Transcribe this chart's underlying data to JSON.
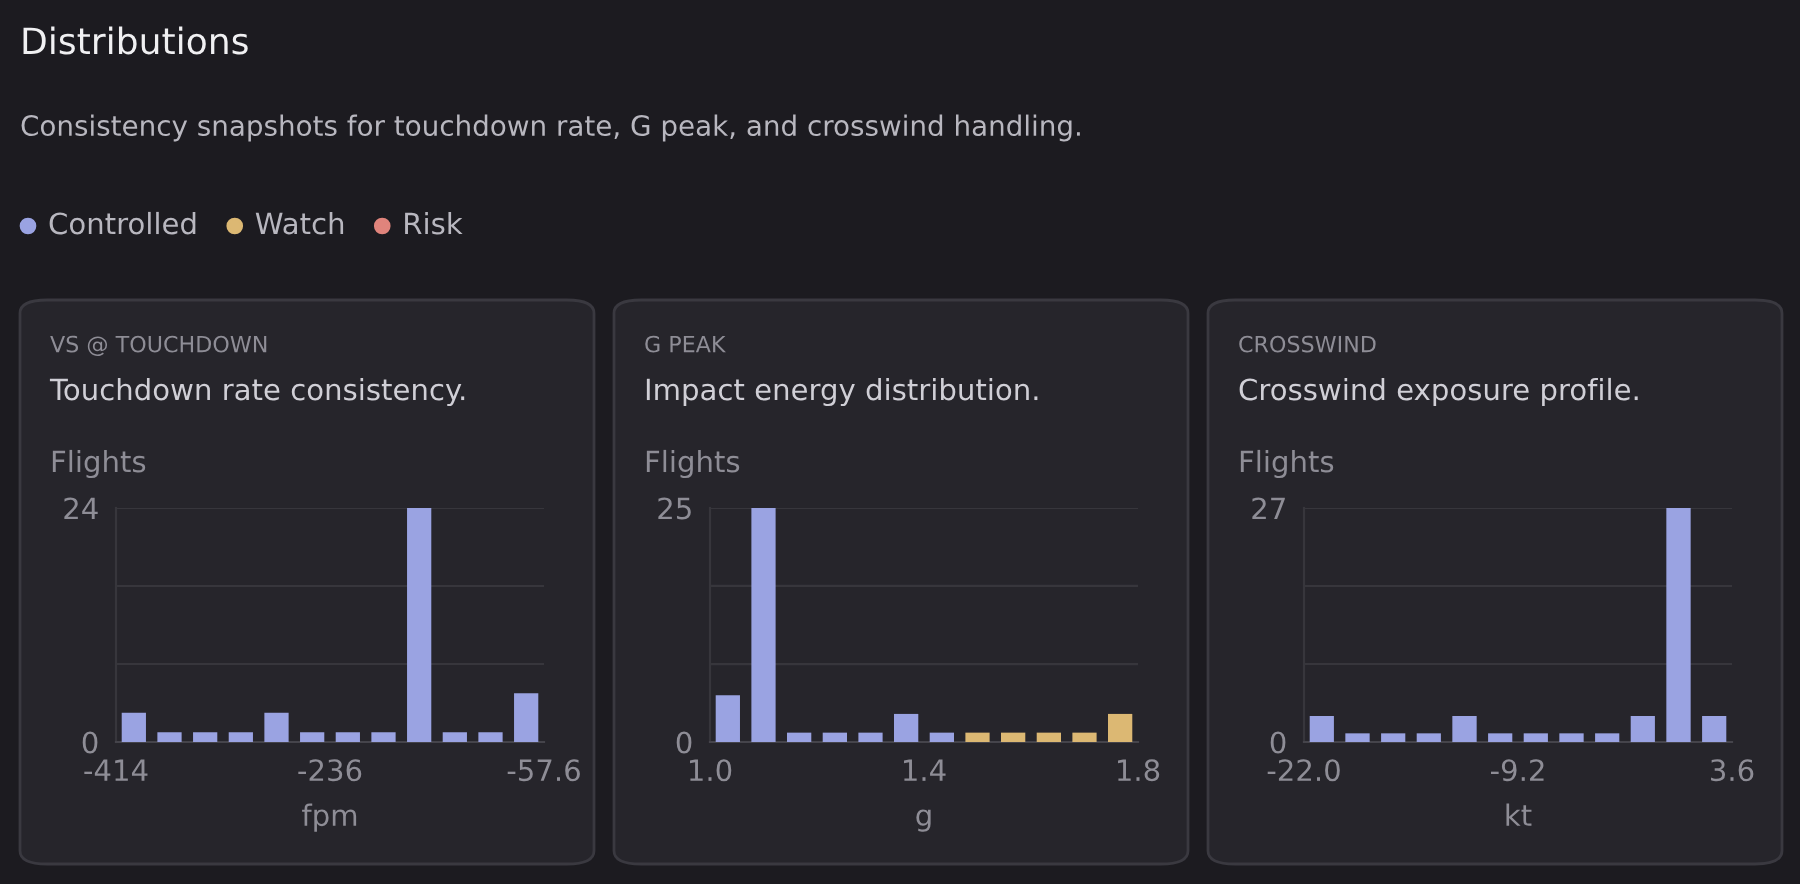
{
  "chart_data": [
    {
      "type": "other",
      "title": "Distributions",
      "subtitle": "Consistency snapshots for touchdown rate, G peak, and crosswind handling.",
      "legend": "top left",
      "series": [
        {
          "name": "Controlled",
          "color": "#9aa3e2"
        },
        {
          "name": "Watch",
          "color": "#dcb873"
        },
        {
          "name": "Risk",
          "color": "#e0847c"
        }
      ]
    },
    {
      "type": "histogram",
      "title": "VS @ TOUCHDOWN",
      "subtitle": "Touchdown rate consistency.",
      "ylabel": "Flights",
      "xlabel": "fpm",
      "bins": [
        -414,
        -384.3,
        -354.6,
        -324.9,
        -295.2,
        -265.5,
        -235.8,
        -206.1,
        -176.4,
        -146.7,
        -117,
        -87.3,
        -57.6
      ],
      "values": [
        3,
        1,
        1,
        1,
        3,
        1,
        1,
        1,
        24,
        1,
        1,
        5
      ],
      "colors": [
        "#9aa3e2",
        "#9aa3e2",
        "#9aa3e2",
        "#9aa3e2",
        "#9aa3e2",
        "#9aa3e2",
        "#9aa3e2",
        "#9aa3e2",
        "#9aa3e2",
        "#9aa3e2",
        "#9aa3e2",
        "#9aa3e2"
      ],
      "xlim": [
        -414,
        -57.6
      ],
      "xticks": [
        -414,
        {
          "value": -235.8,
          "label": "-236"
        },
        -57.6
      ],
      "ylim": [
        0,
        24
      ],
      "yticks": [
        0,
        {
          "value": 8,
          "label": null
        },
        {
          "value": 16,
          "label": null
        },
        24
      ],
      "grid": "y"
    },
    {
      "type": "histogram",
      "title": "G PEAK",
      "subtitle": "Impact energy distribution.",
      "ylabel": "Flights",
      "xlabel": "g",
      "bins": [
        1.0,
        1.0667,
        1.1333,
        1.2,
        1.2667,
        1.3333,
        1.4,
        1.4667,
        1.5333,
        1.6,
        1.6667,
        1.7333,
        1.8
      ],
      "values": [
        5,
        25,
        1,
        1,
        1,
        3,
        1,
        1,
        1,
        1,
        1,
        3
      ],
      "colors": [
        "#9aa3e2",
        "#9aa3e2",
        "#9aa3e2",
        "#9aa3e2",
        "#9aa3e2",
        "#9aa3e2",
        "#9aa3e2",
        "#dcb873",
        "#dcb873",
        "#dcb873",
        "#dcb873",
        "#dcb873"
      ],
      "xlim": [
        1.0,
        1.8
      ],
      "xticks": [
        {
          "value": 1.0,
          "label": "1.0"
        },
        1.4,
        1.8
      ],
      "ylim": [
        0,
        25
      ],
      "yticks": [
        0,
        {
          "value": 8.33,
          "label": null
        },
        {
          "value": 16.67,
          "label": null
        },
        25
      ],
      "grid": "y"
    },
    {
      "type": "histogram",
      "title": "CROSSWIND",
      "subtitle": "Crosswind exposure profile.",
      "ylabel": "Flights",
      "xlabel": "kt",
      "bins": [
        -22.0,
        -19.87,
        -17.73,
        -15.6,
        -13.47,
        -11.33,
        -9.2,
        -7.07,
        -4.93,
        -2.8,
        -0.67,
        1.47,
        3.6
      ],
      "values": [
        3,
        1,
        1,
        1,
        3,
        1,
        1,
        1,
        1,
        3,
        27,
        3
      ],
      "colors": [
        "#9aa3e2",
        "#9aa3e2",
        "#9aa3e2",
        "#9aa3e2",
        "#9aa3e2",
        "#9aa3e2",
        "#9aa3e2",
        "#9aa3e2",
        "#9aa3e2",
        "#9aa3e2",
        "#9aa3e2",
        "#9aa3e2"
      ],
      "xlim": [
        -22.0,
        3.6
      ],
      "xticks": [
        {
          "value": -22.0,
          "label": "-22.0"
        },
        -9.2,
        3.6
      ],
      "ylim": [
        0,
        27
      ],
      "yticks": [
        0,
        {
          "value": 9,
          "label": null
        },
        {
          "value": 18,
          "label": null
        },
        27
      ],
      "grid": "y"
    }
  ]
}
